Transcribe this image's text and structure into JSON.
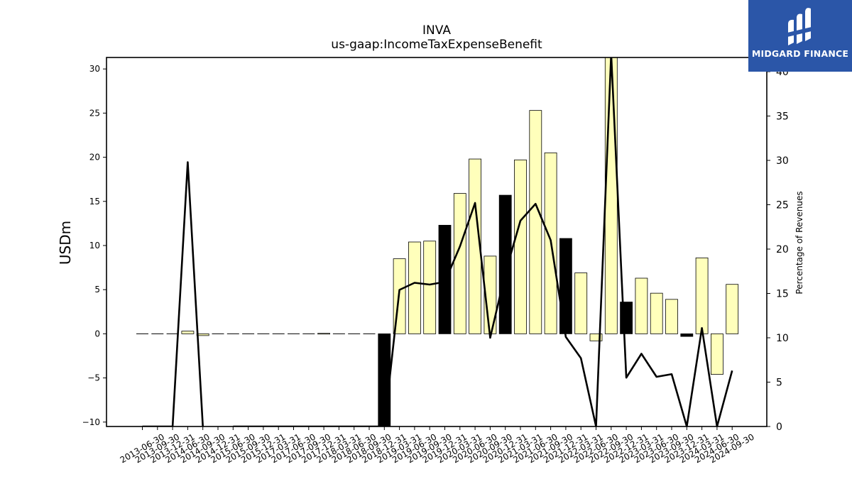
{
  "chart_data": {
    "type": "bar",
    "title": "INVA",
    "subtitle": "us-gaap:IncomeTaxExpenseBenefit",
    "ylabel": "USDm",
    "ylabel_right": "Percentage of Revenues",
    "ylim": [
      -10.5,
      31.3
    ],
    "ylim_right": [
      0,
      41.6
    ],
    "yticks": [
      -10,
      -5,
      0,
      5,
      10,
      15,
      20,
      25,
      30
    ],
    "yticks_right": [
      0,
      5,
      10,
      15,
      20,
      25,
      30,
      35,
      40
    ],
    "categories": [
      "2013-06-30",
      "2013-09-30",
      "2013-12-31",
      "2014-06-30",
      "2014-09-30",
      "2014-12-31",
      "2015-06-30",
      "2015-09-30",
      "2015-12-31",
      "2017-03-31",
      "2017-06-30",
      "2017-09-30",
      "2017-12-31",
      "2018-03-31",
      "2018-06-30",
      "2018-09-30",
      "2018-12-31",
      "2019-03-31",
      "2019-06-30",
      "2019-09-30",
      "2019-12-31",
      "2020-03-31",
      "2020-06-30",
      "2020-09-30",
      "2020-12-31",
      "2021-03-31",
      "2021-06-30",
      "2021-09-30",
      "2021-12-31",
      "2022-03-31",
      "2022-06-30",
      "2022-09-30",
      "2022-12-31",
      "2023-03-31",
      "2023-06-30",
      "2023-09-30",
      "2023-12-31",
      "2024-03-31",
      "2024-06-30",
      "2024-09-30"
    ],
    "series": [
      {
        "type": "bar",
        "values": [
          0,
          0,
          0,
          0.3,
          -0.2,
          0,
          0,
          0,
          0,
          0,
          0,
          0,
          0.05,
          0,
          0,
          0,
          -10.5,
          8.5,
          10.4,
          10.5,
          12.3,
          15.9,
          19.8,
          8.8,
          15.7,
          19.7,
          25.3,
          20.5,
          10.8,
          6.9,
          -0.8,
          31.3,
          3.6,
          6.3,
          4.6,
          3.9,
          -0.3,
          8.6,
          -4.6,
          5.6
        ],
        "bar_colors": [
          "#ffffbb",
          "#ffffbb",
          "#ffffbb",
          "#ffffbb",
          "#ffffbb",
          "#ffffbb",
          "#ffffbb",
          "#ffffbb",
          "#ffffbb",
          "#ffffbb",
          "#ffffbb",
          "#ffffbb",
          "#ffffbb",
          "#ffffbb",
          "#ffffbb",
          "#ffffbb",
          "#000000",
          "#ffffbb",
          "#ffffbb",
          "#ffffbb",
          "#000000",
          "#ffffbb",
          "#ffffbb",
          "#ffffbb",
          "#000000",
          "#ffffbb",
          "#ffffbb",
          "#ffffbb",
          "#000000",
          "#ffffbb",
          "#ffffbb",
          "#ffffbb",
          "#000000",
          "#ffffbb",
          "#ffffbb",
          "#ffffbb",
          "#000000",
          "#ffffbb",
          "#ffffbb",
          "#ffffbb"
        ]
      },
      {
        "type": "line",
        "axis": "right",
        "color": "#000000",
        "values": [
          0,
          0,
          0,
          29.8,
          0,
          null,
          0,
          0,
          0,
          0,
          0,
          0,
          0,
          0,
          0,
          0,
          0,
          15.4,
          16.2,
          16.0,
          16.3,
          20.3,
          25.2,
          10.0,
          17.3,
          23.2,
          25.1,
          21.0,
          10.1,
          7.7,
          0,
          42,
          5.5,
          8.2,
          5.6,
          5.9,
          0,
          11.1,
          0,
          6.3
        ]
      }
    ],
    "grid": false
  },
  "logo": {
    "text": "MIDGARD FINANCE"
  }
}
